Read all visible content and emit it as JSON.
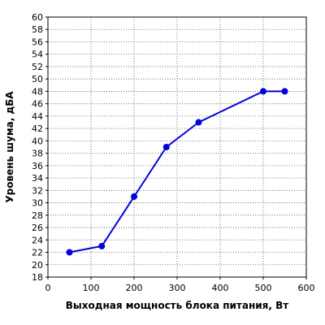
{
  "chart_data": {
    "type": "line",
    "title": "",
    "xlabel": "Выходная мощность блока питания, Вт",
    "ylabel": "Уровень шума, дБА",
    "xlim": [
      0,
      600
    ],
    "ylim": [
      18,
      60
    ],
    "xticks": [
      0,
      100,
      200,
      300,
      400,
      500,
      600
    ],
    "yticks": [
      18,
      20,
      22,
      24,
      26,
      28,
      30,
      32,
      34,
      36,
      38,
      40,
      42,
      44,
      46,
      48,
      50,
      52,
      54,
      56,
      58,
      60
    ],
    "grid": true,
    "legend": "none",
    "series": [
      {
        "color": "#0000dd",
        "x": [
          50,
          125,
          200,
          275,
          350,
          500,
          550
        ],
        "y": [
          22,
          23,
          31,
          39,
          43,
          48,
          48
        ]
      }
    ]
  }
}
